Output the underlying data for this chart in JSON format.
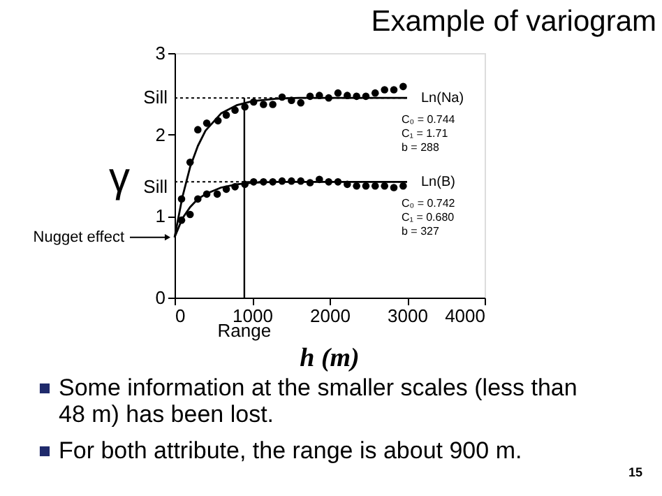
{
  "chart_data": {
    "type": "scatter",
    "title": "Example of variogram",
    "xlabel": "h (m)",
    "xlim": [
      0,
      4000
    ],
    "xticks": [
      0,
      1000,
      2000,
      3000,
      4000
    ],
    "ylim": [
      0,
      3
    ],
    "yticks": [
      0,
      1,
      2,
      3
    ],
    "series": [
      {
        "marker": "circle",
        "color": "#000000",
        "x": [
          90,
          200,
          300,
          415,
          560,
          667,
          780,
          907,
          1020,
          1147,
          1267,
          1387,
          1508,
          1628,
          1748,
          1868,
          1988,
          2108,
          2228,
          2348,
          2468,
          2588,
          2709,
          2829,
          2949
        ],
        "values": [
          1.21,
          1.66,
          2.06,
          2.14,
          2.17,
          2.24,
          2.3,
          2.34,
          2.4,
          2.37,
          2.37,
          2.46,
          2.42,
          2.39,
          2.47,
          2.48,
          2.45,
          2.51,
          2.48,
          2.47,
          2.47,
          2.51,
          2.55,
          2.55,
          2.59
        ]
      },
      {
        "type": "line",
        "marker": "none",
        "name": "Ln(Na)",
        "color": "#000000",
        "line_style": "solid",
        "x": [
          0,
          100,
          200,
          300,
          400,
          600,
          800,
          1000,
          1300,
          1600,
          2000,
          3000
        ],
        "values": [
          0.74,
          1.23,
          1.6,
          1.86,
          2.05,
          2.26,
          2.36,
          2.41,
          2.44,
          2.45,
          2.45,
          2.45
        ]
      },
      {
        "marker": "circle",
        "color": "#000000",
        "x": [
          90,
          200,
          300,
          415,
          550,
          667,
          780,
          907,
          1020,
          1147,
          1267,
          1387,
          1508,
          1628,
          1748,
          1868,
          1988,
          2108,
          2228,
          2348,
          2468,
          2588,
          2709,
          2829,
          2949
        ],
        "values": [
          0.95,
          1.02,
          1.21,
          1.27,
          1.27,
          1.33,
          1.36,
          1.39,
          1.42,
          1.42,
          1.42,
          1.43,
          1.43,
          1.43,
          1.41,
          1.45,
          1.42,
          1.42,
          1.39,
          1.37,
          1.37,
          1.37,
          1.37,
          1.35,
          1.37
        ]
      },
      {
        "type": "line",
        "marker": "none",
        "name": "Ln(B)",
        "color": "#000000",
        "line_style": "solid",
        "x": [
          0,
          100,
          200,
          300,
          400,
          600,
          800,
          1000,
          1300,
          1600,
          2000,
          3000
        ],
        "values": [
          0.74,
          0.97,
          1.11,
          1.21,
          1.27,
          1.35,
          1.39,
          1.41,
          1.42,
          1.42,
          1.42,
          1.42
        ]
      }
    ],
    "ref_lines": [
      {
        "axis": "y",
        "value": 2.45,
        "label": "Sill",
        "color": "#000000",
        "line_style": "dotted"
      },
      {
        "axis": "y",
        "value": 1.42,
        "label": "γ$_{Sill}$",
        "color": "#000000",
        "line_style": "dotted"
      },
      {
        "axis": "x",
        "value": 900,
        "label": "Range",
        "color": "#000000",
        "line_style": "solid"
      }
    ],
    "annotations": [
      "Nugget effect",
      "C₀ = 0.744",
      "C₁ = 1.71",
      "b = 288",
      "C₀ = 0.742",
      "C₁ = 0.680",
      "b = 327",
      "Some information at the smaller scales (less than 48 m) has been lost.",
      "For both attribute, the range is about 900 m.",
      "15"
    ]
  }
}
